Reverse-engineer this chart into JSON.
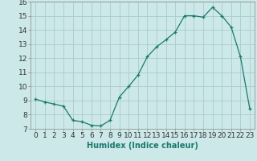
{
  "x": [
    0,
    1,
    2,
    3,
    4,
    5,
    6,
    7,
    8,
    9,
    10,
    11,
    12,
    13,
    14,
    15,
    16,
    17,
    18,
    19,
    20,
    21,
    22,
    23
  ],
  "y": [
    9.1,
    8.9,
    8.75,
    8.6,
    7.6,
    7.5,
    7.25,
    7.2,
    7.6,
    9.25,
    10.0,
    10.8,
    12.1,
    12.8,
    13.3,
    13.85,
    15.0,
    15.0,
    14.9,
    15.6,
    15.0,
    14.2,
    12.1,
    8.4
  ],
  "line_color": "#1a7a6e",
  "marker": "+",
  "bg_color": "#cce8e8",
  "grid_color": "#aacccc",
  "xlabel": "Humidex (Indice chaleur)",
  "ylim": [
    7,
    16
  ],
  "xlim_min": -0.5,
  "xlim_max": 23.5,
  "yticks": [
    7,
    8,
    9,
    10,
    11,
    12,
    13,
    14,
    15,
    16
  ],
  "xticks": [
    0,
    1,
    2,
    3,
    4,
    5,
    6,
    7,
    8,
    9,
    10,
    11,
    12,
    13,
    14,
    15,
    16,
    17,
    18,
    19,
    20,
    21,
    22,
    23
  ],
  "xlabel_fontsize": 7,
  "tick_fontsize": 6.5
}
